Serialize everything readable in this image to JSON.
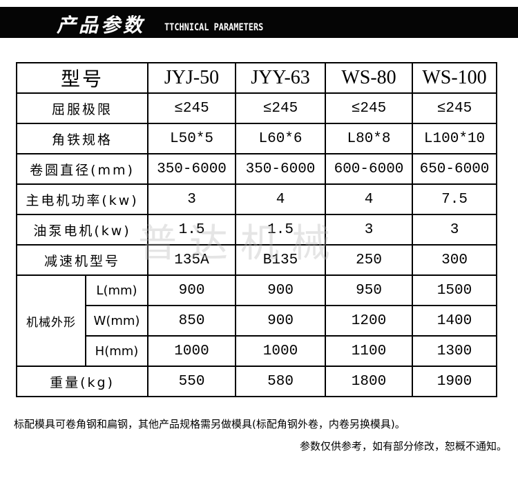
{
  "banner": {
    "title_cn": "产品参数",
    "title_en": "TTCHNICAL PARAMETERS"
  },
  "watermark": "普达机械",
  "table": {
    "header": {
      "label": "型号",
      "models": [
        "JYJ-50",
        "JYY-63",
        "WS-80",
        "WS-100"
      ]
    },
    "rows": [
      {
        "label": "屈服极限",
        "values": [
          "≤245",
          "≤245",
          "≤245",
          "≤245"
        ]
      },
      {
        "label": "角铁规格",
        "values": [
          "L50*5",
          "L60*6",
          "L80*8",
          "L100*10"
        ]
      },
      {
        "label": "卷圆直径(mm)",
        "values": [
          "350-6000",
          "350-6000",
          "600-6000",
          "650-6000"
        ]
      },
      {
        "label": "主电机功率(kw)",
        "values": [
          "3",
          "4",
          "4",
          "7.5"
        ]
      },
      {
        "label": "油泵电机(kw)",
        "values": [
          "1.5",
          "1.5",
          "3",
          "3"
        ]
      },
      {
        "label": "减速机型号",
        "values": [
          "135A",
          "B135",
          "250",
          "300"
        ]
      }
    ],
    "dimensions": {
      "label": "机械外形",
      "rows": [
        {
          "label": "L(mm)",
          "values": [
            "900",
            "900",
            "950",
            "1500"
          ]
        },
        {
          "label": "W(mm)",
          "values": [
            "850",
            "900",
            "1200",
            "1400"
          ]
        },
        {
          "label": "H(mm)",
          "values": [
            "1000",
            "1000",
            "1100",
            "1300"
          ]
        }
      ]
    },
    "weight": {
      "label": "重量(kg)",
      "values": [
        "550",
        "580",
        "1800",
        "1900"
      ]
    }
  },
  "notes": [
    "标配模具可卷角钢和扁钢，其他产品规格需另做模具(标配角钢外卷，内卷另换模具)。",
    "参数仅供参考，如有部分修改，恕概不通知。"
  ]
}
